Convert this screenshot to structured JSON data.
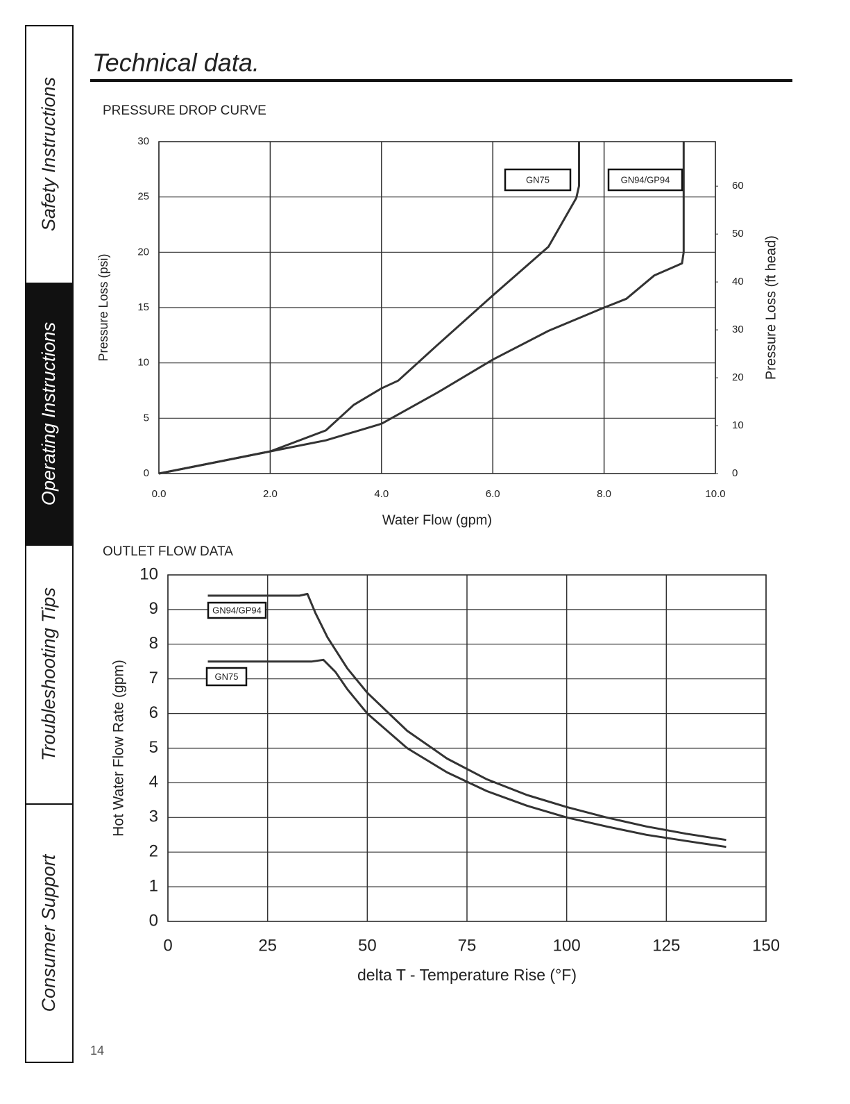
{
  "sidebar": [
    "Safety Instructions",
    "Operating Instructions",
    "Troubleshooting Tips",
    "Consumer Support"
  ],
  "title": "Technical data.",
  "page_number": "14",
  "chart_data": [
    {
      "type": "line",
      "title": "PRESSURE DROP CURVE",
      "x_label": "Water Flow (gpm)",
      "y_label": "Pressure Loss (psi)",
      "y2_label": "Pressure Loss (ft head)",
      "xlim": [
        0,
        10
      ],
      "xticks": [
        {
          "value": 0,
          "label": "0.0"
        },
        {
          "value": 2,
          "label": "2.0"
        },
        {
          "value": 4,
          "label": "4.0"
        },
        {
          "value": 6,
          "label": "6.0"
        },
        {
          "value": 8,
          "label": "8.0"
        },
        {
          "value": 10,
          "label": "10.0"
        }
      ],
      "ylim": [
        0,
        30
      ],
      "yticks": [
        0,
        5,
        10,
        15,
        20,
        25,
        30
      ],
      "y2lim": [
        0,
        69.3
      ],
      "y2ticks": [
        0,
        10,
        20,
        30,
        40,
        50,
        60
      ],
      "grid": true,
      "series": [
        {
          "name": "GN75",
          "color": "#333333",
          "x": [
            0,
            1,
            2,
            3,
            3.5,
            4,
            4.3,
            5,
            6,
            7,
            7.5,
            7.55,
            7.55
          ],
          "values": [
            0,
            1,
            2,
            3.9,
            6.2,
            7.7,
            8.4,
            11.6,
            16.1,
            20.5,
            24.9,
            26,
            30
          ]
        },
        {
          "name": "GN94/GP94",
          "color": "#333333",
          "x": [
            0,
            2,
            3,
            4,
            5,
            6,
            7,
            8,
            8.4,
            8.9,
            9.4,
            9.43,
            9.43
          ],
          "values": [
            0,
            2,
            3,
            4.5,
            7.3,
            10.3,
            12.9,
            15,
            15.8,
            17.9,
            19,
            20,
            30
          ]
        }
      ]
    },
    {
      "type": "line",
      "title": "OUTLET FLOW DATA",
      "x_label": "delta T - Temperature Rise (°F)",
      "y_label": "Hot Water Flow Rate (gpm)",
      "xlim": [
        0,
        150
      ],
      "xticks": [
        0,
        25,
        50,
        75,
        100,
        125,
        150
      ],
      "ylim": [
        0,
        10
      ],
      "yticks": [
        0,
        1,
        2,
        3,
        4,
        5,
        6,
        7,
        8,
        9,
        10
      ],
      "grid": true,
      "series": [
        {
          "name": "GN94/GP94",
          "color": "#333333",
          "x": [
            10,
            33,
            35,
            37,
            40,
            45,
            50,
            60,
            70,
            80,
            90,
            100,
            110,
            120,
            130,
            140
          ],
          "values": [
            9.4,
            9.4,
            9.45,
            8.9,
            8.2,
            7.3,
            6.6,
            5.5,
            4.7,
            4.1,
            3.65,
            3.3,
            3.0,
            2.74,
            2.53,
            2.35
          ]
        },
        {
          "name": "GN75",
          "color": "#333333",
          "x": [
            10,
            36,
            39,
            42,
            45,
            50,
            60,
            70,
            80,
            90,
            100,
            110,
            120,
            130,
            140
          ],
          "values": [
            7.5,
            7.5,
            7.55,
            7.2,
            6.7,
            6.0,
            5.0,
            4.3,
            3.76,
            3.34,
            3.0,
            2.74,
            2.5,
            2.32,
            2.15
          ]
        }
      ]
    }
  ]
}
